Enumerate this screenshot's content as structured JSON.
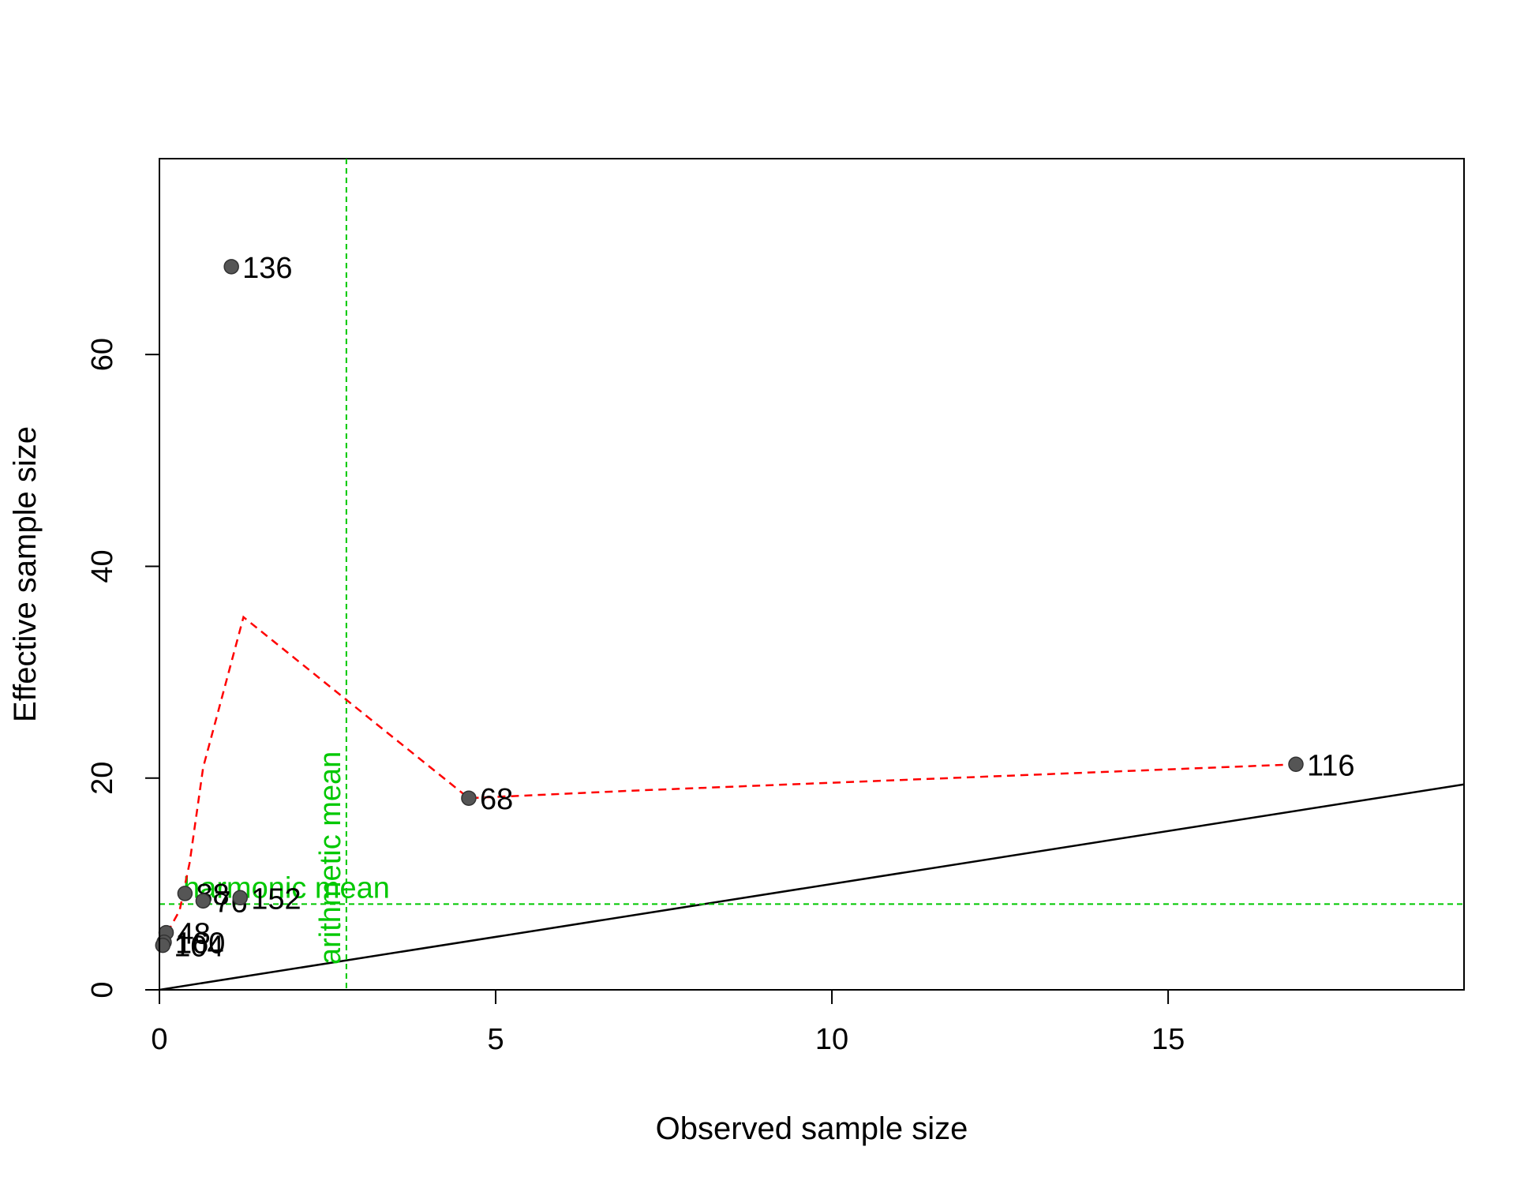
{
  "chart_data": {
    "type": "scatter",
    "title": "",
    "xlabel": "Observed sample size",
    "ylabel": "Effective sample size",
    "xlim": [
      0,
      19.4
    ],
    "ylim": [
      0,
      78.5
    ],
    "x_ticks": [
      0,
      5,
      10,
      15
    ],
    "y_ticks": [
      0,
      20,
      40,
      60
    ],
    "grid": false,
    "legend": "none",
    "points": [
      {
        "label": "136",
        "x": 1.07,
        "y": 68.3
      },
      {
        "label": "116",
        "x": 16.9,
        "y": 21.3
      },
      {
        "label": "68",
        "x": 4.6,
        "y": 18.1
      },
      {
        "label": "88",
        "x": 0.38,
        "y": 9.1
      },
      {
        "label": "76",
        "x": 0.65,
        "y": 8.4
      },
      {
        "label": "152",
        "x": 1.2,
        "y": 8.7
      },
      {
        "label": "48",
        "x": 0.1,
        "y": 5.4
      },
      {
        "label": "160",
        "x": 0.07,
        "y": 4.5
      },
      {
        "label": "104",
        "x": 0.05,
        "y": 4.2
      }
    ],
    "smooth_line": {
      "color": "#ff0000",
      "style": "dashed",
      "x": [
        0.05,
        0.1,
        0.3,
        0.45,
        0.65,
        1.25,
        4.6,
        7.0,
        16.9
      ],
      "y": [
        4.2,
        5.2,
        7.5,
        12.0,
        21.0,
        35.2,
        18.1,
        18.8,
        21.3
      ]
    },
    "identity_line": {
      "color": "#000000",
      "slope": 1,
      "intercept": 0
    },
    "reference_lines": {
      "color": "#00c800",
      "harmonic_mean": {
        "label": "harmonic mean",
        "y": 8.1
      },
      "arithmetic_mean": {
        "label": "arithmetic mean",
        "x": 2.78
      }
    },
    "colors": {
      "points": "#555555",
      "smooth": "#ff0000",
      "reference": "#00c800",
      "identity": "#000000"
    }
  }
}
